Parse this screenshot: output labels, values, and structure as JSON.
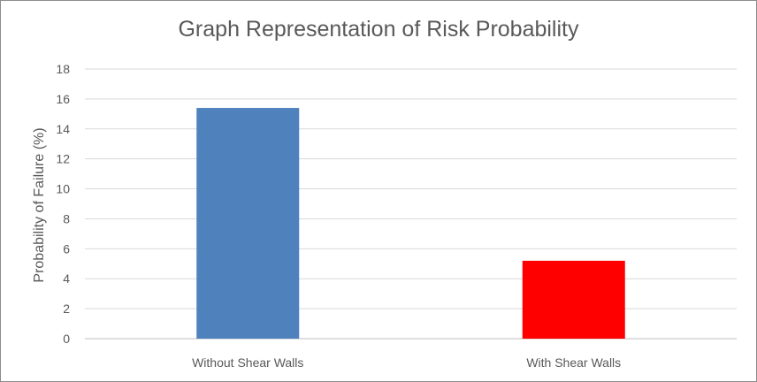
{
  "chart_data": {
    "type": "bar",
    "title": "Graph Representation of Risk Probability",
    "xlabel": "",
    "ylabel": "Probability of Failure (%)",
    "categories": [
      "Without Shear Walls",
      "With Shear Walls"
    ],
    "values": [
      15.4,
      5.2
    ],
    "colors": [
      "#4f81bd",
      "#ff0000"
    ],
    "ylim": [
      0,
      18
    ],
    "yticks": [
      "0",
      "2",
      "4",
      "6",
      "8",
      "10",
      "12",
      "14",
      "16",
      "18"
    ],
    "grid": true,
    "legend": "none"
  }
}
